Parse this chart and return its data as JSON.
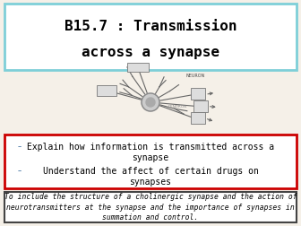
{
  "title_line1": "B15.7 : Transmission",
  "title_line2": "across a synapse",
  "title_box_color": "#7ecfd8",
  "bullet1_line1": "Explain how information is transmitted across a",
  "bullet1_line2": "synapse",
  "bullet2_line1": "Understand the affect of certain drugs on",
  "bullet2_line2": "synapses",
  "bullet_box_color": "#cc0000",
  "footer_text": "To include the structure of a cholinergic synapse and the action of\nneurotransmitters at the synapse and the importance of synapses in\nsummation and control.",
  "footer_box_color": "#444444",
  "bg_color": "#f5f0e8",
  "title_fontsize": 11.5,
  "bullet_fontsize": 7.0,
  "footer_fontsize": 5.8
}
